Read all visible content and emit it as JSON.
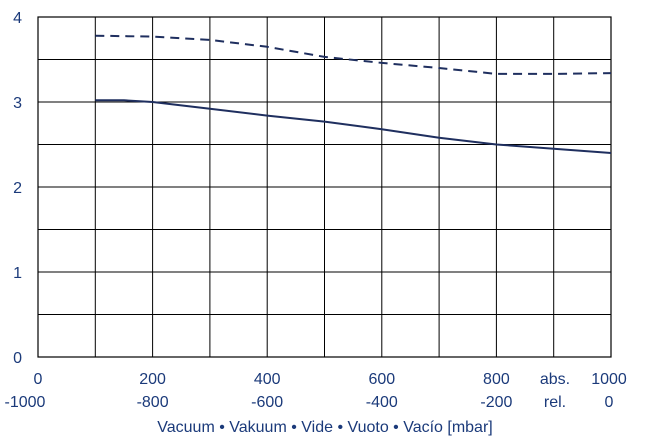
{
  "chart_data": {
    "type": "line",
    "xlim": [
      0,
      1000
    ],
    "ylim": [
      0,
      4
    ],
    "grid": true,
    "legend": "none",
    "colors": {
      "line": "#1f2f5f",
      "grid": "#000000",
      "text": "#1b3a7a"
    },
    "x_ticks_abs": [
      "0",
      "200",
      "400",
      "600",
      "800",
      "1000"
    ],
    "x_ticks_rel": [
      "-1000",
      "-800",
      "-600",
      "-400",
      "-200",
      "0"
    ],
    "abs_label": "abs.",
    "rel_label": "rel.",
    "y_ticks": [
      "0",
      "1",
      "2",
      "3",
      "4"
    ],
    "xlabel": "Vacuum • Vakuum • Vide • Vuoto • Vacío  [mbar]",
    "series": [
      {
        "style": "dashed",
        "x": [
          100,
          200,
          300,
          400,
          500,
          600,
          700,
          800,
          900,
          1000
        ],
        "y": [
          3.78,
          3.77,
          3.73,
          3.65,
          3.53,
          3.46,
          3.4,
          3.33,
          3.33,
          3.34
        ]
      },
      {
        "style": "solid",
        "x": [
          100,
          150,
          200,
          300,
          400,
          500,
          600,
          700,
          800,
          900,
          1000
        ],
        "y": [
          3.02,
          3.02,
          3.0,
          2.92,
          2.84,
          2.77,
          2.68,
          2.58,
          2.5,
          2.45,
          2.4
        ]
      }
    ]
  }
}
